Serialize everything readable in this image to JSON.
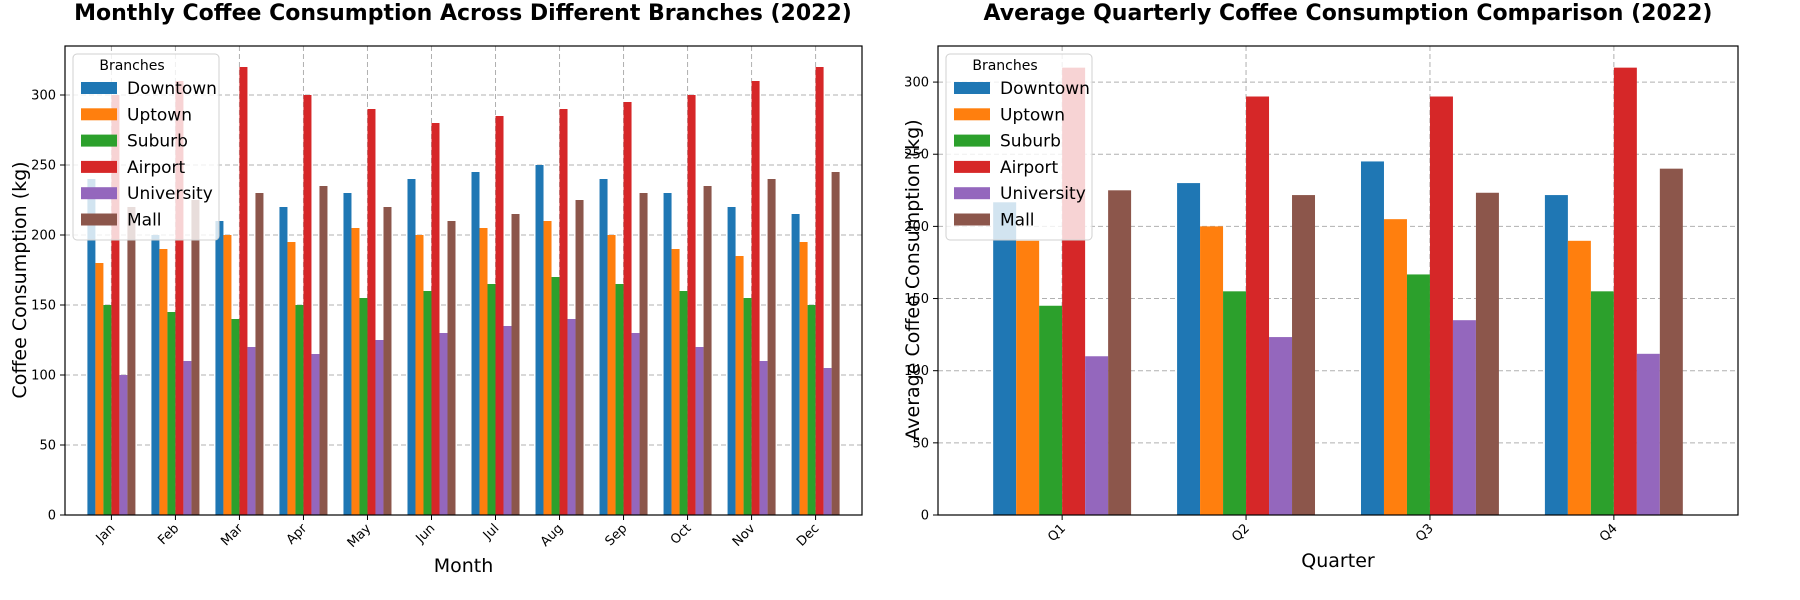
{
  "legend_title": "Branches",
  "colors": {
    "Downtown": "#1f77b4",
    "Uptown": "#ff7f0e",
    "Suburb": "#2ca02c",
    "Airport": "#d62728",
    "University": "#9467bd",
    "Mall": "#8c564b"
  },
  "chart_data": [
    {
      "type": "bar",
      "title": "Monthly Coffee Consumption Across Different Branches (2022)",
      "xlabel": "Month",
      "ylabel": "Coffee Consumption (kg)",
      "categories": [
        "Jan",
        "Feb",
        "Mar",
        "Apr",
        "May",
        "Jun",
        "Jul",
        "Aug",
        "Sep",
        "Oct",
        "Nov",
        "Dec"
      ],
      "ylim": [
        0,
        335
      ],
      "yticks": [
        0,
        50,
        100,
        150,
        200,
        250,
        300
      ],
      "grid": true,
      "legend_position": "upper-left",
      "series": [
        {
          "name": "Downtown",
          "values": [
            240,
            200,
            210,
            220,
            230,
            240,
            245,
            250,
            240,
            230,
            220,
            215
          ]
        },
        {
          "name": "Uptown",
          "values": [
            180,
            190,
            200,
            195,
            205,
            200,
            205,
            210,
            200,
            190,
            185,
            195
          ]
        },
        {
          "name": "Suburb",
          "values": [
            150,
            145,
            140,
            150,
            155,
            160,
            165,
            170,
            165,
            160,
            155,
            150
          ]
        },
        {
          "name": "Airport",
          "values": [
            300,
            310,
            320,
            300,
            290,
            280,
            285,
            290,
            295,
            300,
            310,
            320
          ]
        },
        {
          "name": "University",
          "values": [
            100,
            110,
            120,
            115,
            125,
            130,
            135,
            140,
            130,
            120,
            110,
            105
          ]
        },
        {
          "name": "Mall",
          "values": [
            220,
            225,
            230,
            235,
            220,
            210,
            215,
            225,
            230,
            235,
            240,
            245
          ]
        }
      ]
    },
    {
      "type": "bar",
      "title": "Average Quarterly Coffee Consumption Comparison (2022)",
      "xlabel": "Quarter",
      "ylabel": "Average Coffee Consumption (kg)",
      "categories": [
        "Q1",
        "Q2",
        "Q3",
        "Q4"
      ],
      "ylim": [
        0,
        325
      ],
      "yticks": [
        0,
        50,
        100,
        150,
        200,
        250,
        300
      ],
      "grid": true,
      "legend_position": "upper-left",
      "series": [
        {
          "name": "Downtown",
          "values": [
            216.7,
            230,
            245,
            221.7
          ]
        },
        {
          "name": "Uptown",
          "values": [
            190,
            200,
            205,
            190
          ]
        },
        {
          "name": "Suburb",
          "values": [
            145,
            155,
            166.7,
            155
          ]
        },
        {
          "name": "Airport",
          "values": [
            310,
            290,
            290,
            310
          ]
        },
        {
          "name": "University",
          "values": [
            110,
            123.3,
            135,
            111.7
          ]
        },
        {
          "name": "Mall",
          "values": [
            225,
            221.7,
            223.3,
            240
          ]
        }
      ]
    }
  ]
}
